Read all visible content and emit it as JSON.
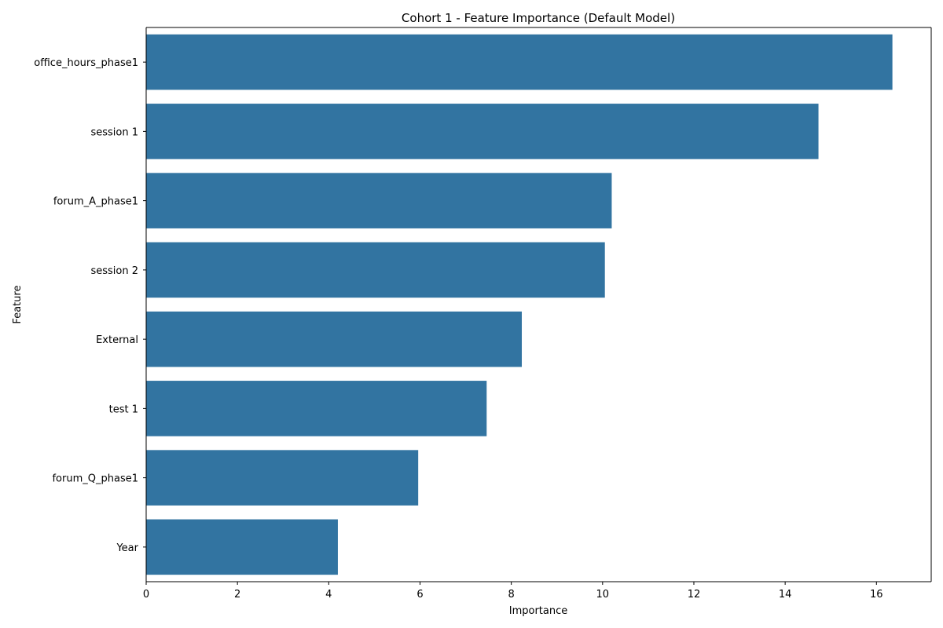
{
  "chart_data": {
    "type": "bar",
    "orientation": "horizontal",
    "title": "Cohort 1 - Feature Importance (Default Model)",
    "xlabel": "Importance",
    "ylabel": "Feature",
    "categories": [
      "office_hours_phase1",
      "session 1",
      "forum_A_phase1",
      "session 2",
      "External",
      "test 1",
      "forum_Q_phase1",
      "Year"
    ],
    "values": [
      16.35,
      14.73,
      10.2,
      10.05,
      8.23,
      7.46,
      5.96,
      4.2
    ],
    "xlim": [
      0,
      17.2
    ],
    "xticks": [
      0,
      2,
      4,
      6,
      8,
      10,
      12,
      14,
      16
    ],
    "grid": false,
    "bar_color": "#3274a1"
  }
}
